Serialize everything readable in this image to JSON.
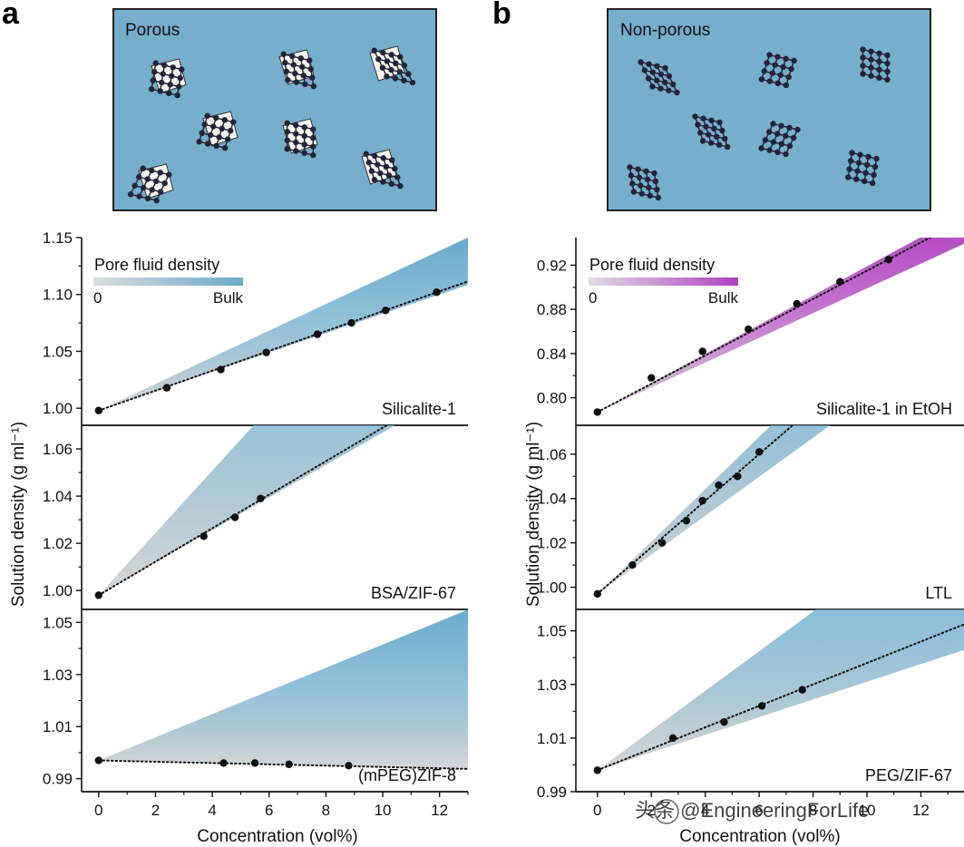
{
  "panels": [
    {
      "letter": "a",
      "inset_label": "Porous"
    },
    {
      "letter": "b",
      "inset_label": "Non-porous"
    }
  ],
  "colors": {
    "inset_bg": "#76aecb",
    "fill_blue": "#6aaacb",
    "fill_purple": "#b040c0",
    "fill_gray": "#d6d6d6",
    "points": "#111111"
  },
  "legends": [
    {
      "title": "Pore fluid density",
      "low": "0",
      "high": "Bulk",
      "color": "blue"
    },
    {
      "title": "Pore fluid density",
      "low": "0",
      "high": "Bulk",
      "color": "purple"
    }
  ],
  "y_label": "Solution density (g ml⁻¹)",
  "x_label": "Concentration (vol%)",
  "watermark": "头条 @EngineeringForLife",
  "chart_data": [
    {
      "type": "scatter",
      "name": "Silicalite-1",
      "column": "a",
      "series": [
        {
          "x": [
            0,
            2.4,
            4.3,
            5.9,
            7.7,
            8.9,
            10.1,
            11.9
          ],
          "y": [
            0.998,
            1.018,
            1.034,
            1.049,
            1.065,
            1.075,
            1.086,
            1.102
          ]
        }
      ],
      "fit": {
        "y0": 0.998,
        "slope": 0.00873
      },
      "band": {
        "porous_slope": 0.0117,
        "nonporous_slope": 0.0085,
        "y0": 0.998,
        "color": "blue"
      },
      "xlim": [
        -0.6,
        13
      ],
      "ylim": [
        0.985,
        1.15
      ],
      "yticks": [
        1.0,
        1.05,
        1.1,
        1.15
      ],
      "ytick_labels": [
        "1.00",
        "1.05",
        "1.10",
        "1.15"
      ],
      "legend": "top-left"
    },
    {
      "type": "scatter",
      "name": "BSA/ZIF-67",
      "column": "a",
      "series": [
        {
          "x": [
            0,
            3.7,
            4.8,
            5.7
          ],
          "y": [
            0.998,
            1.023,
            1.031,
            1.039
          ]
        }
      ],
      "fit": {
        "y0": 0.998,
        "slope": 0.0071
      },
      "band": {
        "porous_slope": 0.0132,
        "nonporous_slope": 0.0069,
        "y0": 0.998,
        "color": "blue"
      },
      "xlim": [
        -0.6,
        13
      ],
      "ylim": [
        0.992,
        1.07
      ],
      "yticks": [
        1.0,
        1.02,
        1.04,
        1.06
      ],
      "ytick_labels": [
        "1.00",
        "1.02",
        "1.04",
        "1.06"
      ]
    },
    {
      "type": "scatter",
      "name": "(mPEG)ZIF-8",
      "column": "a",
      "series": [
        {
          "x": [
            0,
            4.4,
            5.5,
            6.7,
            8.8
          ],
          "y": [
            0.997,
            0.996,
            0.996,
            0.9955,
            0.995
          ]
        }
      ],
      "fit": {
        "y0": 0.997,
        "slope": -0.00025
      },
      "band": {
        "porous_slope": 0.00445,
        "nonporous_slope": -0.00025,
        "y0": 0.997,
        "color": "blue"
      },
      "xlim": [
        -0.6,
        13
      ],
      "ylim": [
        0.985,
        1.055
      ],
      "yticks": [
        0.99,
        1.01,
        1.03,
        1.05
      ],
      "ytick_labels": [
        "0.99",
        "1.01",
        "1.03",
        "1.05"
      ],
      "xticks": [
        0,
        2,
        4,
        6,
        8,
        10,
        12
      ],
      "xtick_labels": [
        "0",
        "2",
        "4",
        "6",
        "8",
        "10",
        "12"
      ]
    },
    {
      "type": "scatter",
      "name": "Silicalite-1 in EtOH",
      "column": "b",
      "series": [
        {
          "x": [
            0,
            2.0,
            3.9,
            5.6,
            7.4,
            9.0,
            10.8
          ],
          "y": [
            0.787,
            0.818,
            0.842,
            0.862,
            0.885,
            0.905,
            0.925
          ]
        }
      ],
      "fit": {
        "y0": 0.787,
        "slope": 0.0128
      },
      "band": {
        "porous_slope": 0.0132,
        "nonporous_slope": 0.0112,
        "y0": 0.787,
        "color": "purple"
      },
      "xlim": [
        -0.8,
        13.6
      ],
      "ylim": [
        0.775,
        0.945
      ],
      "yticks": [
        0.8,
        0.84,
        0.88,
        0.92
      ],
      "ytick_labels": [
        "0.80",
        "0.84",
        "0.88",
        "0.92"
      ],
      "legend": "top-left"
    },
    {
      "type": "scatter",
      "name": "LTL",
      "column": "b",
      "series": [
        {
          "x": [
            0,
            1.3,
            2.4,
            3.3,
            3.9,
            4.5,
            5.2,
            6.0
          ],
          "y": [
            0.997,
            1.01,
            1.02,
            1.03,
            1.039,
            1.046,
            1.05,
            1.061
          ]
        }
      ],
      "fit": {
        "y0": 0.997,
        "slope": 0.0105
      },
      "band": {
        "porous_slope": 0.0118,
        "nonporous_slope": 0.0088,
        "y0": 0.997,
        "color": "blue"
      },
      "xlim": [
        -0.8,
        13.6
      ],
      "ylim": [
        0.99,
        1.073
      ],
      "yticks": [
        1.0,
        1.02,
        1.04,
        1.06
      ],
      "ytick_labels": [
        "1.00",
        "1.02",
        "1.04",
        "1.06"
      ]
    },
    {
      "type": "scatter",
      "name": "PEG/ZIF-67",
      "column": "b",
      "series": [
        {
          "x": [
            0,
            2.8,
            4.7,
            6.1,
            7.6
          ],
          "y": [
            0.998,
            1.01,
            1.016,
            1.022,
            1.028
          ]
        }
      ],
      "fit": {
        "y0": 0.998,
        "slope": 0.004
      },
      "band": {
        "porous_slope": 0.0074,
        "nonporous_slope": 0.0033,
        "y0": 0.998,
        "color": "blue"
      },
      "xlim": [
        -0.8,
        13.6
      ],
      "ylim": [
        0.99,
        1.058
      ],
      "yticks": [
        0.99,
        1.01,
        1.03,
        1.05
      ],
      "ytick_labels": [
        "0.99",
        "1.01",
        "1.03",
        "1.05"
      ],
      "xticks": [
        0,
        2,
        4,
        6,
        8,
        10,
        12
      ],
      "xtick_labels": [
        "0",
        "2",
        "4",
        "6",
        "8",
        "10",
        "12"
      ]
    }
  ]
}
